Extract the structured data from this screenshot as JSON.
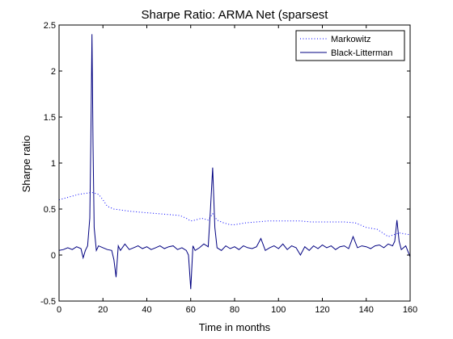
{
  "chart_data": {
    "type": "line",
    "title": "Sharpe Ratio: ARMA Net (sparsest",
    "xlabel": "Time in months",
    "ylabel": "Sharpe ratio",
    "xlim": [
      0,
      160
    ],
    "ylim": [
      -0.5,
      2.5
    ],
    "x_ticks": [
      "0",
      "20",
      "40",
      "60",
      "80",
      "100",
      "120",
      "140",
      "160"
    ],
    "y_ticks": [
      "-0.5",
      "0",
      "0.5",
      "1",
      "1.5",
      "2",
      "2.5"
    ],
    "grid": false,
    "legend_position": "top-right",
    "series": [
      {
        "name": "Markowitz",
        "style": "dotted",
        "color": "#0000ff",
        "x": [
          0,
          3,
          6,
          9,
          12,
          15,
          18,
          20,
          22,
          25,
          28,
          31,
          35,
          40,
          45,
          50,
          55,
          58,
          60,
          62,
          65,
          68,
          70,
          72,
          75,
          78,
          80,
          85,
          90,
          95,
          100,
          105,
          110,
          115,
          120,
          125,
          130,
          135,
          140,
          145,
          150,
          155,
          160
        ],
        "y": [
          0.6,
          0.62,
          0.64,
          0.66,
          0.67,
          0.68,
          0.66,
          0.6,
          0.53,
          0.5,
          0.49,
          0.48,
          0.47,
          0.46,
          0.45,
          0.44,
          0.43,
          0.4,
          0.37,
          0.38,
          0.4,
          0.38,
          0.45,
          0.38,
          0.35,
          0.33,
          0.33,
          0.35,
          0.36,
          0.37,
          0.37,
          0.37,
          0.37,
          0.36,
          0.36,
          0.36,
          0.36,
          0.35,
          0.3,
          0.28,
          0.2,
          0.24,
          0.22
        ]
      },
      {
        "name": "Black-Litterman",
        "style": "solid",
        "color": "#000080",
        "x": [
          0,
          2,
          4,
          6,
          8,
          10,
          11,
          12,
          13,
          14,
          14.5,
          15,
          15.5,
          16,
          17,
          18,
          20,
          22,
          24,
          25,
          26,
          27,
          28,
          30,
          32,
          34,
          36,
          38,
          40,
          42,
          44,
          46,
          48,
          50,
          52,
          54,
          56,
          58,
          59,
          60,
          61,
          62,
          64,
          66,
          68,
          69,
          70,
          71,
          72,
          74,
          76,
          78,
          80,
          82,
          84,
          86,
          88,
          90,
          92,
          94,
          96,
          98,
          100,
          102,
          104,
          106,
          108,
          110,
          112,
          114,
          116,
          118,
          120,
          122,
          124,
          126,
          128,
          130,
          132,
          134,
          136,
          138,
          140,
          142,
          144,
          146,
          148,
          150,
          152,
          153,
          154,
          155,
          156,
          158,
          160
        ],
        "y": [
          0.05,
          0.06,
          0.08,
          0.06,
          0.09,
          0.07,
          -0.03,
          0.05,
          0.1,
          0.4,
          1.25,
          2.4,
          1.2,
          0.3,
          0.05,
          0.1,
          0.08,
          0.06,
          0.05,
          -0.05,
          -0.24,
          0.1,
          0.05,
          0.12,
          0.06,
          0.08,
          0.1,
          0.07,
          0.09,
          0.06,
          0.08,
          0.1,
          0.07,
          0.09,
          0.1,
          0.06,
          0.08,
          0.05,
          0.0,
          -0.37,
          0.1,
          0.05,
          0.08,
          0.12,
          0.09,
          0.5,
          0.95,
          0.3,
          0.08,
          0.05,
          0.1,
          0.07,
          0.09,
          0.06,
          0.1,
          0.08,
          0.07,
          0.09,
          0.18,
          0.05,
          0.08,
          0.1,
          0.07,
          0.12,
          0.06,
          0.1,
          0.08,
          0.0,
          0.09,
          0.05,
          0.1,
          0.07,
          0.11,
          0.08,
          0.1,
          0.06,
          0.09,
          0.1,
          0.07,
          0.2,
          0.08,
          0.1,
          0.09,
          0.07,
          0.1,
          0.11,
          0.08,
          0.12,
          0.1,
          0.15,
          0.38,
          0.15,
          0.06,
          0.1,
          -0.02
        ]
      }
    ]
  }
}
